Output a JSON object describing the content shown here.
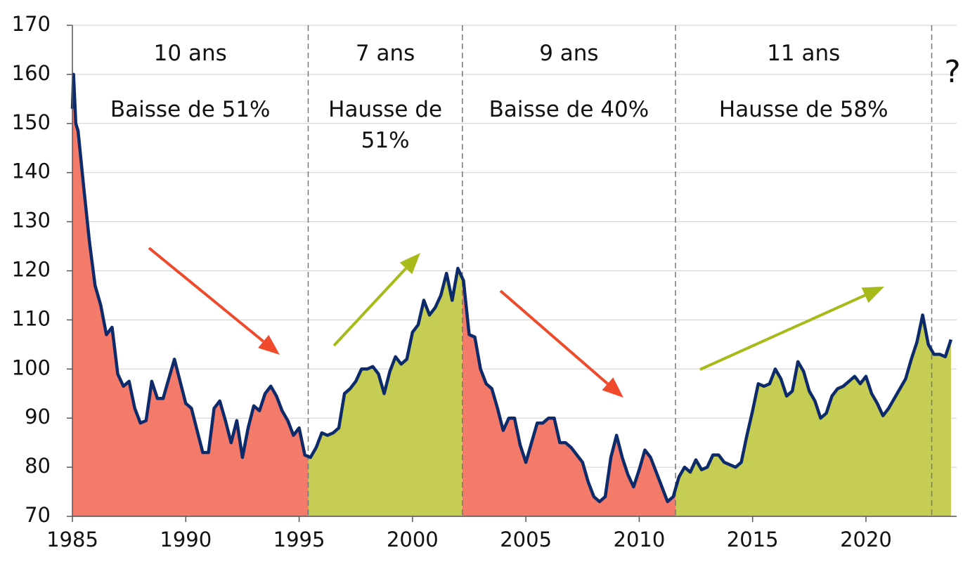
{
  "chart_data": {
    "type": "area-line",
    "x": [
      1985,
      1985.05,
      1985.15,
      1985.25,
      1985.5,
      1985.75,
      1986,
      1986.25,
      1986.5,
      1986.75,
      1987,
      1987.25,
      1987.5,
      1987.75,
      1988,
      1988.25,
      1988.5,
      1988.75,
      1989,
      1989.25,
      1989.5,
      1989.75,
      1990,
      1990.25,
      1990.5,
      1990.75,
      1991,
      1991.25,
      1991.5,
      1991.75,
      1992,
      1992.25,
      1992.5,
      1992.75,
      1993,
      1993.25,
      1993.5,
      1993.75,
      1994,
      1994.25,
      1994.5,
      1994.75,
      1995,
      1995.25,
      1995.5,
      1995.75,
      1996,
      1996.25,
      1996.5,
      1996.75,
      1997,
      1997.25,
      1997.5,
      1997.75,
      1998,
      1998.25,
      1998.5,
      1998.75,
      1999,
      1999.25,
      1999.5,
      1999.75,
      2000,
      2000.25,
      2000.5,
      2000.75,
      2001,
      2001.25,
      2001.5,
      2001.75,
      2002,
      2002.25,
      2002.5,
      2002.75,
      2003,
      2003.25,
      2003.5,
      2003.75,
      2004,
      2004.25,
      2004.5,
      2004.75,
      2005,
      2005.25,
      2005.5,
      2005.75,
      2006,
      2006.25,
      2006.5,
      2006.75,
      2007,
      2007.25,
      2007.5,
      2007.75,
      2008,
      2008.25,
      2008.5,
      2008.75,
      2009,
      2009.25,
      2009.5,
      2009.75,
      2010,
      2010.25,
      2010.5,
      2010.75,
      2011,
      2011.25,
      2011.5,
      2011.75,
      2012,
      2012.25,
      2012.5,
      2012.75,
      2013,
      2013.25,
      2013.5,
      2013.75,
      2014,
      2014.25,
      2014.5,
      2014.75,
      2015,
      2015.25,
      2015.5,
      2015.75,
      2016,
      2016.25,
      2016.5,
      2016.75,
      2017,
      2017.25,
      2017.5,
      2017.75,
      2018,
      2018.25,
      2018.5,
      2018.75,
      2019,
      2019.25,
      2019.5,
      2019.75,
      2020,
      2020.25,
      2020.5,
      2020.75,
      2021,
      2021.25,
      2021.5,
      2021.75,
      2022,
      2022.25,
      2022.5,
      2022.75,
      2023,
      2023.25,
      2023.5,
      2023.75
    ],
    "values": [
      153,
      160,
      150,
      148.5,
      137,
      126,
      117,
      113,
      107,
      108.5,
      99,
      96.5,
      97.5,
      92,
      89,
      89.5,
      97.5,
      94,
      94,
      98,
      102,
      97.5,
      93,
      92,
      87.5,
      83,
      83,
      92,
      93.5,
      89.5,
      85,
      89.5,
      82,
      88,
      92.5,
      91.5,
      95,
      96.5,
      94.5,
      91.5,
      89.5,
      86.5,
      88,
      82.5,
      82,
      84,
      87,
      86.5,
      87,
      88,
      95,
      96,
      97.5,
      100,
      100,
      100.5,
      99,
      95,
      99.5,
      102.5,
      101,
      102,
      107.5,
      109,
      114,
      111,
      112.5,
      115,
      119.5,
      114,
      120.5,
      118,
      107,
      106.5,
      100,
      97,
      96,
      92,
      87.5,
      90,
      90,
      84.5,
      81,
      85,
      89,
      89,
      90,
      90,
      85,
      85,
      84,
      82.5,
      81,
      77,
      74,
      73,
      74,
      82,
      86.5,
      82,
      78.5,
      76,
      79.5,
      83.5,
      82,
      79,
      76,
      73,
      74,
      78,
      80,
      79,
      81.5,
      79.5,
      80,
      82.5,
      82.5,
      81,
      80.5,
      80,
      81,
      86.5,
      91.5,
      97,
      96.5,
      97,
      100,
      98,
      94.5,
      95.5,
      101.5,
      99.5,
      95.5,
      93.5,
      90,
      91,
      94.5,
      96,
      96.5,
      97.5,
      98.5,
      97,
      98.5,
      95,
      93,
      90.5,
      92,
      94,
      96,
      98,
      102,
      105.5,
      111,
      105,
      103,
      103,
      102.5,
      106
    ],
    "line_color": "#0d2a6a",
    "xlim": [
      1985,
      2024
    ],
    "ylim": [
      70,
      170
    ],
    "xticks": [
      1985,
      1990,
      1995,
      2000,
      2005,
      2010,
      2015,
      2020
    ],
    "yticks": [
      70,
      80,
      90,
      100,
      110,
      120,
      130,
      140,
      150,
      160,
      170
    ],
    "grid": true,
    "phases": [
      {
        "start": 1985,
        "color": "#f47a6a",
        "duration": "10 ans",
        "change": "Baisse de 51%"
      },
      {
        "start": 1995.4,
        "color": "#c6cd55",
        "duration": "7 ans",
        "change": "Hausse de 51%"
      },
      {
        "start": 2002.2,
        "color": "#f47a6a",
        "duration": "9 ans",
        "change": "Baisse de 40%"
      },
      {
        "start": 2011.6,
        "color": "#c6cd55",
        "duration": "11 ans",
        "change": "Hausse de 58%"
      }
    ],
    "dividers": [
      1995.4,
      2002.2,
      2011.6,
      2022.9
    ],
    "question": "?"
  }
}
